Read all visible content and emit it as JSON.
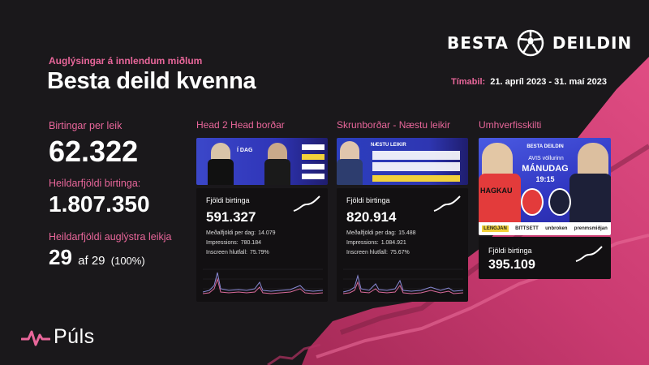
{
  "brand": {
    "besta_left": "BESTA",
    "besta_right": "DEILDIN",
    "puls": "Púls"
  },
  "header": {
    "subtitle": "Auglýsingar á innlendum miðlum",
    "title": "Besta deild kvenna",
    "period_label": "Tímabil:",
    "period_value": "21. apríl 2023 - 31. maí 2023"
  },
  "stats": {
    "per_game_label": "Birtingar per leik",
    "per_game_value": "62.322",
    "total_label": "Heildarfjöldi birtinga:",
    "total_value": "1.807.350",
    "games_label": "Heildarfjöldi auglýstra leikja",
    "games_count": "29",
    "games_of": "af 29",
    "games_pct": "(100%)"
  },
  "columns": [
    {
      "title": "Head 2 Head borðar",
      "card_label": "Fjöldi birtinga",
      "card_value": "591.327",
      "rows": [
        {
          "label": "Meðalfjöldi per dag:",
          "value": "14.079"
        },
        {
          "label": "Impressions:",
          "value": "780.184"
        },
        {
          "label": "Inscreen hlutfall:",
          "value": "75.79%"
        }
      ]
    },
    {
      "title": "Skrunborðar - Næstu leikir",
      "card_label": "Fjöldi birtinga",
      "card_value": "820.914",
      "rows": [
        {
          "label": "Meðalfjöldi per dag:",
          "value": "15.488"
        },
        {
          "label": "Impressions:",
          "value": "1.084.921"
        },
        {
          "label": "Inscreen hlutfall:",
          "value": "75.67%"
        }
      ]
    },
    {
      "title": "Umhverfisskilti",
      "card_label": "Fjöldi birtinga",
      "card_value": "395.109"
    }
  ],
  "thumbs": {
    "h2h_tag": "Í DAG",
    "skrun_tag": "NÆSTU LEIKIR",
    "umh_brand": "BESTA DEILDIN",
    "umh_venue": "AVIS völlurinn",
    "umh_day": "MÁNUDAG",
    "umh_time": "19:15",
    "sponsors": [
      "LENGJAN",
      "BITTSETT",
      "unbroken",
      "prenmsmiðjan"
    ]
  },
  "colors": {
    "accent_pink": "#e8669a",
    "brush_pink": "#c4376b",
    "background": "#1a181b"
  }
}
